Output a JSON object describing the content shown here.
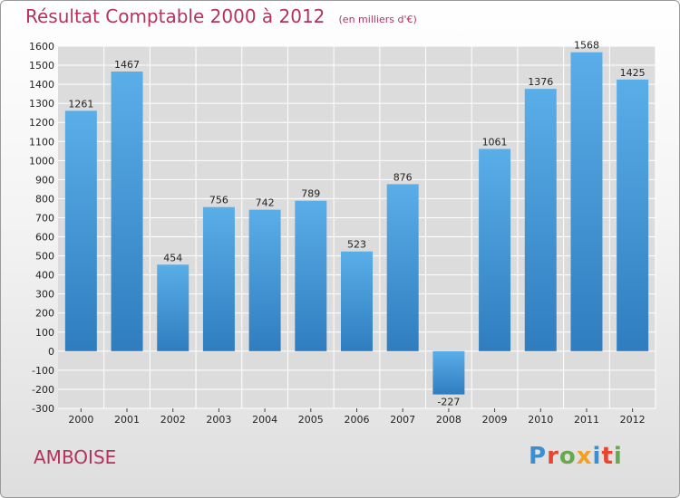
{
  "header": {
    "title": "Résultat Comptable 2000 à 2012",
    "subtitle": "(en milliers d'€)"
  },
  "footer": {
    "place": "AMBOISE",
    "logo_text": "Proxiti",
    "logo_colors": [
      "#3a8fd0",
      "#e8452c",
      "#6aa84f",
      "#f3a021",
      "#3a8fd0",
      "#e8452c",
      "#6aa84f"
    ]
  },
  "chart_data": {
    "type": "bar",
    "categories": [
      "2000",
      "2001",
      "2002",
      "2003",
      "2004",
      "2005",
      "2006",
      "2007",
      "2008",
      "2009",
      "2010",
      "2011",
      "2012"
    ],
    "values": [
      1261,
      1467,
      454,
      756,
      742,
      789,
      523,
      876,
      -227,
      1061,
      1376,
      1568,
      1425
    ],
    "ylim": [
      -300,
      1600
    ],
    "yticks": [
      -300,
      -200,
      -100,
      0,
      100,
      200,
      300,
      400,
      500,
      600,
      700,
      800,
      900,
      1000,
      1100,
      1200,
      1300,
      1400,
      1500,
      1600
    ],
    "grid": true,
    "bar_color_light": "#5aaee8",
    "bar_color_dark": "#2f7dbf",
    "grid_color": "#ffffff",
    "plot_background": "#dcdcdc"
  }
}
